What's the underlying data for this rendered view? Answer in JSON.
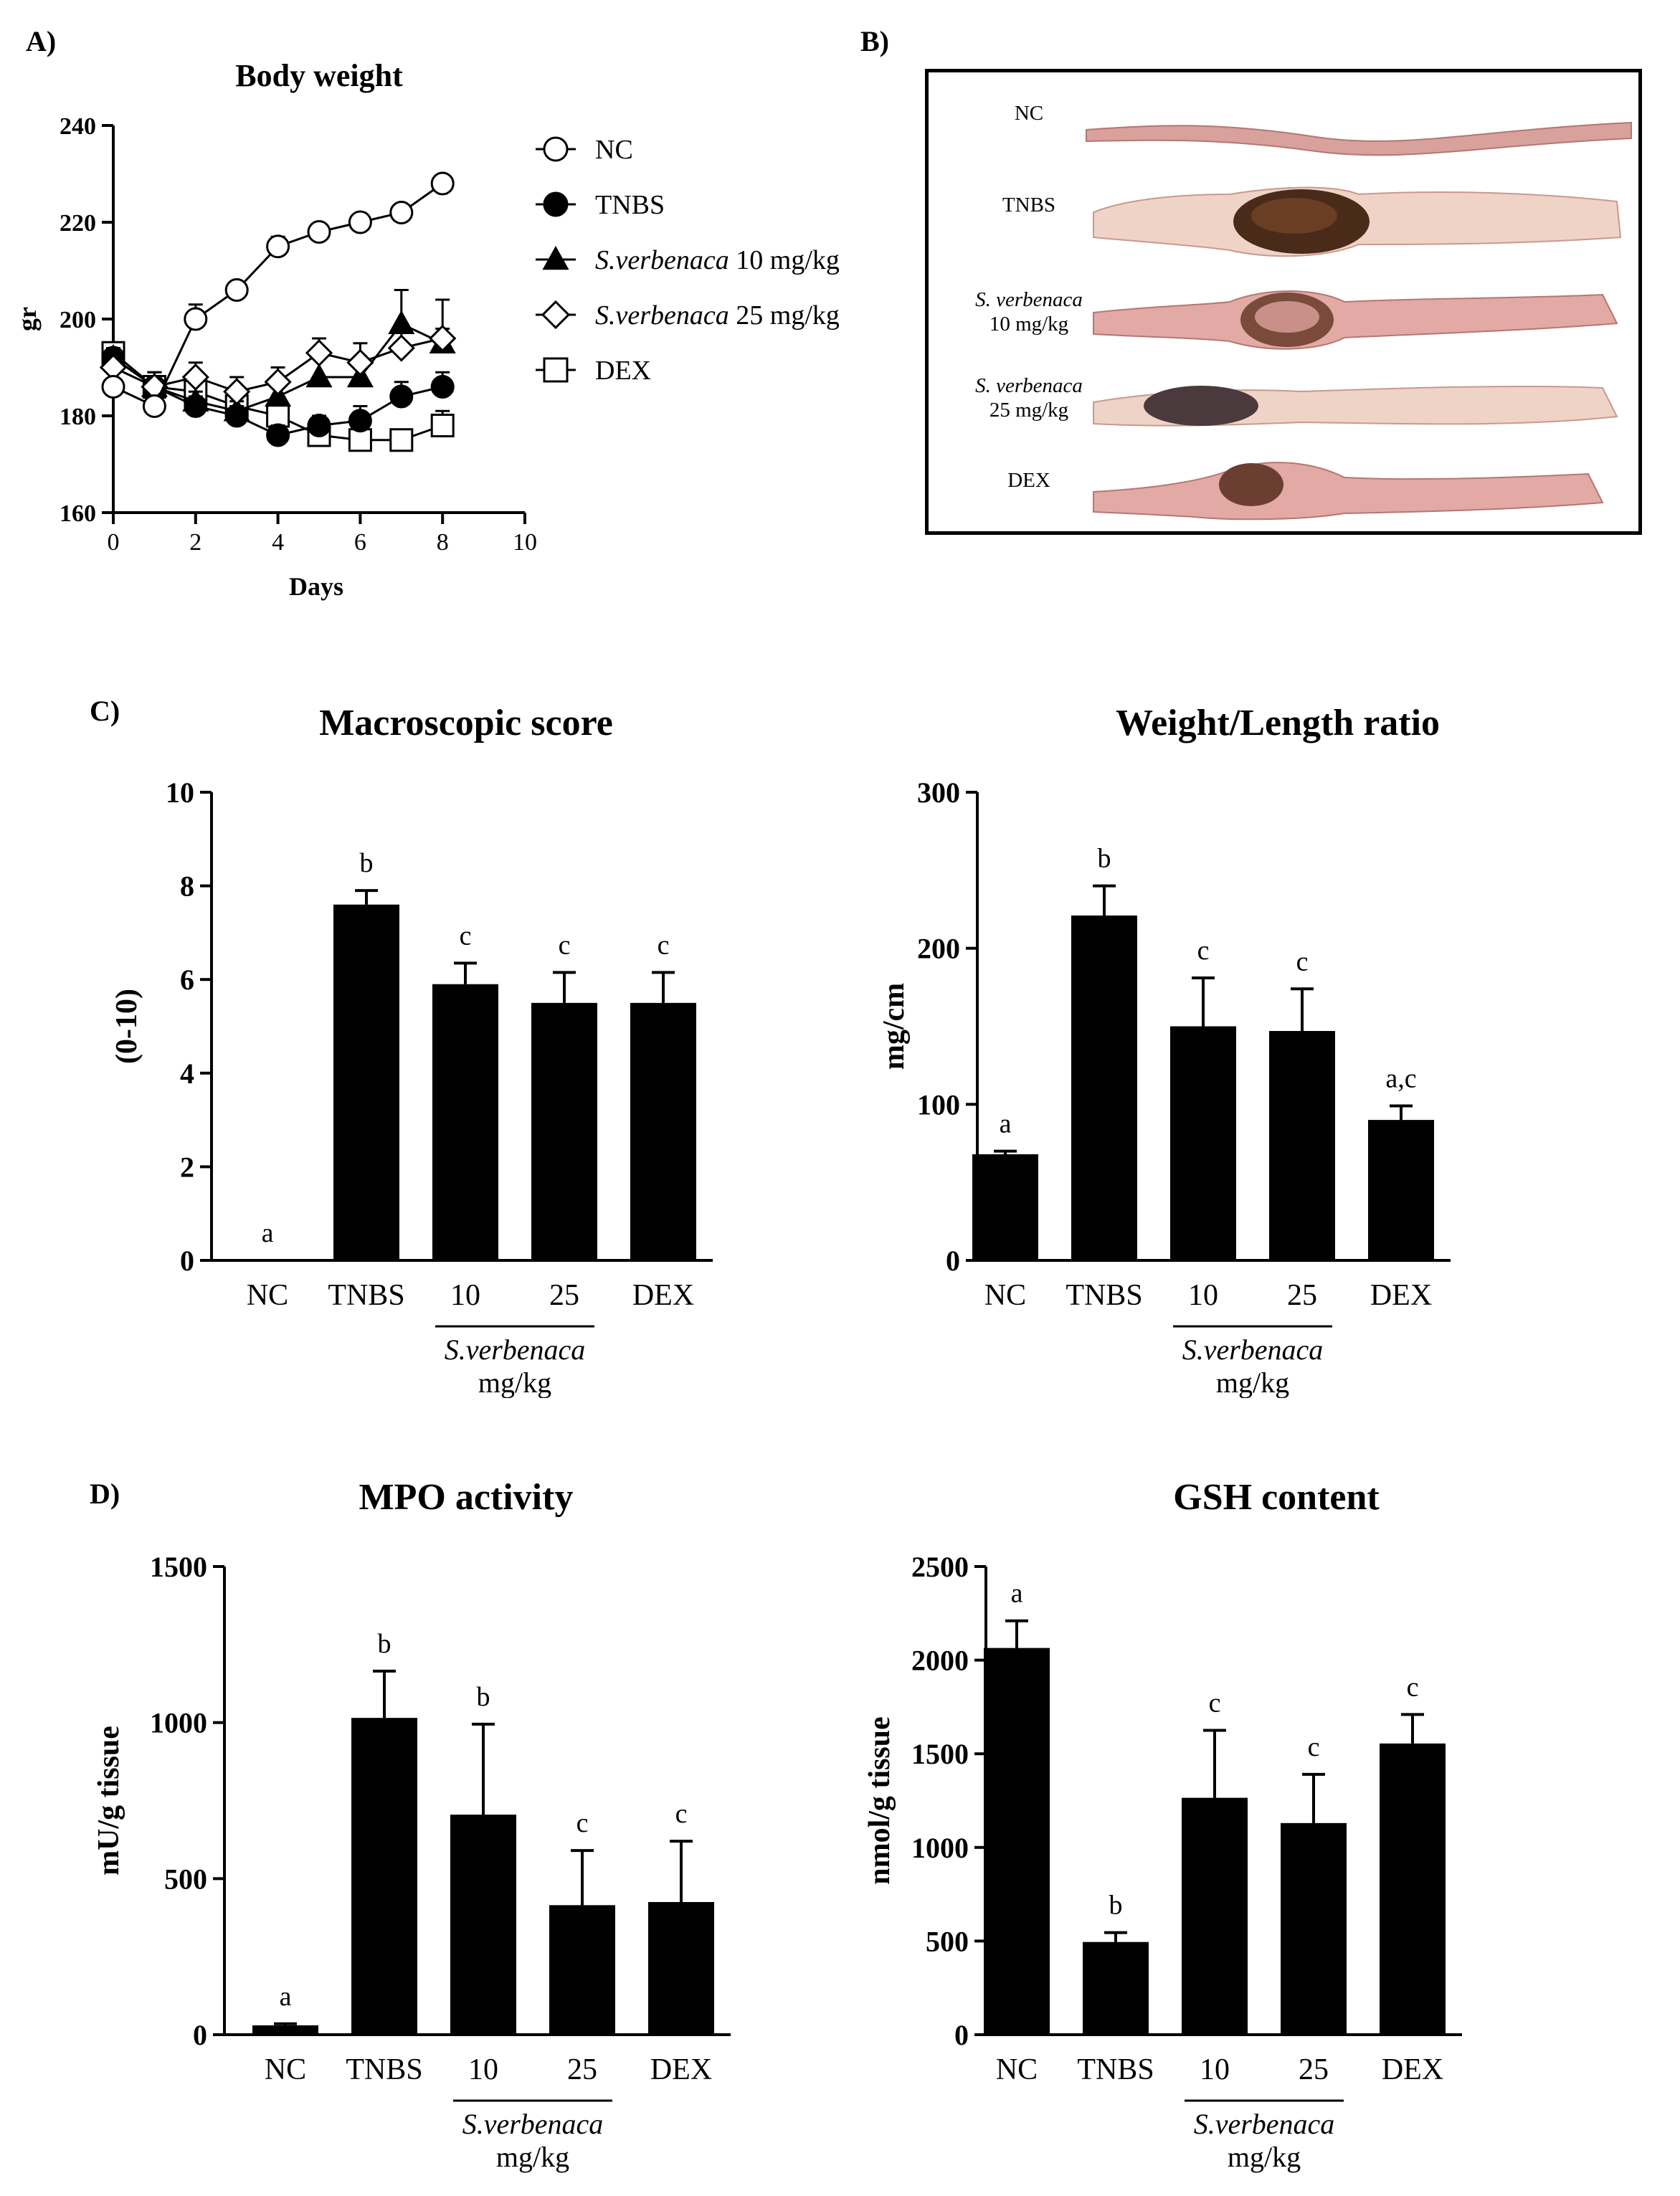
{
  "panel_labels": {
    "a": "A)",
    "b": "B)",
    "c": "C)",
    "d": "D)"
  },
  "photo": {
    "labels": [
      "NC",
      "TNBS",
      "S. verbenaca",
      "10 mg/kg",
      "S. verbenaca",
      "25 mg/kg",
      "DEX"
    ]
  },
  "colors": {
    "bar": "#000000",
    "tissue": "#e3a9a4",
    "tissue_pale": "#efd3c6",
    "lesion": "#4a2a18"
  },
  "chart_data": [
    {
      "id": "body-weight",
      "type": "line",
      "title": "Body weight",
      "xlabel": "Days",
      "ylabel": "gr",
      "xlim": [
        0,
        10
      ],
      "ylim": [
        160,
        240
      ],
      "xticks": [
        0,
        2,
        4,
        6,
        8,
        10
      ],
      "yticks": [
        160,
        180,
        200,
        220,
        240
      ],
      "x": [
        0,
        1,
        2,
        3,
        4,
        5,
        6,
        7,
        8
      ],
      "legend": "right",
      "series": [
        {
          "name": "NC",
          "name_italic": "",
          "name_suffix": "",
          "marker": "circle-open",
          "values": [
            186,
            182,
            200,
            206,
            215,
            218,
            220,
            222,
            228
          ],
          "errors": [
            1,
            1,
            3,
            1,
            2,
            1,
            1,
            1,
            1
          ]
        },
        {
          "name": "TNBS",
          "name_italic": "",
          "name_suffix": "",
          "marker": "circle-filled",
          "values": [
            192,
            186,
            182,
            180,
            176,
            178,
            179,
            184,
            186
          ],
          "errors": [
            2,
            2,
            2,
            2,
            2,
            2,
            3,
            3,
            3
          ]
        },
        {
          "name": "",
          "name_italic": "S.verbenaca",
          "name_suffix": " 10 mg/kg",
          "marker": "triangle-filled",
          "values": [
            192,
            186,
            183,
            181,
            184,
            188,
            188,
            199,
            195
          ],
          "errors": [
            2,
            3,
            2,
            2,
            3,
            4,
            4,
            7,
            9
          ]
        },
        {
          "name": "",
          "name_italic": "S.verbenaca",
          "name_suffix": " 25 mg/kg",
          "marker": "diamond-open",
          "values": [
            190,
            186,
            188,
            185,
            187,
            193,
            191,
            194,
            196
          ],
          "errors": [
            2,
            3,
            3,
            3,
            3,
            3,
            4,
            4,
            2
          ]
        },
        {
          "name": "DEX",
          "name_italic": "",
          "name_suffix": "",
          "marker": "square-open",
          "values": [
            193,
            186,
            185,
            182,
            180,
            176,
            175,
            175,
            178
          ],
          "errors": [
            2,
            2,
            2,
            2,
            2,
            2,
            2,
            2,
            3
          ]
        }
      ]
    },
    {
      "id": "macroscopic-score",
      "type": "bar",
      "title": "Macroscopic score",
      "ylabel": "(0-10)",
      "ylim": [
        0,
        10
      ],
      "yticks": [
        0,
        2,
        4,
        6,
        8,
        10
      ],
      "categories": [
        "NC",
        "TNBS",
        "10",
        "25",
        "DEX"
      ],
      "values": [
        0,
        7.6,
        5.9,
        5.5,
        5.5
      ],
      "errors": [
        0,
        0.3,
        0.45,
        0.65,
        0.65
      ],
      "letters": [
        "a",
        "b",
        "c",
        "c",
        "c"
      ],
      "group_label": "S.verbenaca",
      "group_unit": "mg/kg"
    },
    {
      "id": "weight-length-ratio",
      "type": "bar",
      "title": "Weight/Length ratio",
      "ylabel": "mg/cm",
      "ylim": [
        0,
        300
      ],
      "yticks": [
        0,
        100,
        200,
        300
      ],
      "categories": [
        "NC",
        "TNBS",
        "10",
        "25",
        "DEX"
      ],
      "values": [
        68,
        221,
        150,
        147,
        90
      ],
      "errors": [
        2,
        19,
        31,
        27,
        9
      ],
      "letters": [
        "a",
        "b",
        "c",
        "c",
        "a,c"
      ],
      "group_label": "S.verbenaca",
      "group_unit": "mg/kg"
    },
    {
      "id": "mpo-activity",
      "type": "bar",
      "title": "MPO activity",
      "ylabel": "mU/g tissue",
      "ylim": [
        0,
        1500
      ],
      "yticks": [
        0,
        500,
        1000,
        1500
      ],
      "categories": [
        "NC",
        "TNBS",
        "10",
        "25",
        "DEX"
      ],
      "values": [
        30,
        1015,
        705,
        415,
        425
      ],
      "errors": [
        5,
        150,
        290,
        175,
        195
      ],
      "letters": [
        "a",
        "b",
        "b",
        "c",
        "c"
      ],
      "group_label": "S.verbenaca",
      "group_unit": "mg/kg"
    },
    {
      "id": "gsh-content",
      "type": "bar",
      "title": "GSH content",
      "ylabel": "nmol/g tissue",
      "ylim": [
        0,
        2500
      ],
      "yticks": [
        0,
        500,
        1000,
        1500,
        2000,
        2500
      ],
      "categories": [
        "NC",
        "TNBS",
        "10",
        "25",
        "DEX"
      ],
      "values": [
        2065,
        495,
        1265,
        1130,
        1555
      ],
      "errors": [
        145,
        50,
        360,
        260,
        155
      ],
      "letters": [
        "a",
        "b",
        "c",
        "c",
        "c"
      ],
      "group_label": "S.verbenaca",
      "group_unit": "mg/kg"
    }
  ]
}
